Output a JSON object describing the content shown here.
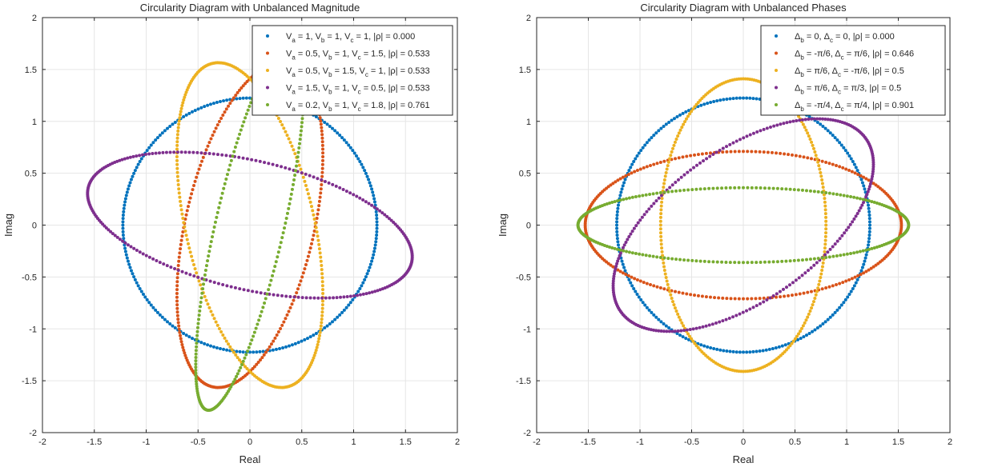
{
  "chart_data": [
    {
      "type": "scatter",
      "title": "Circularity Diagram with Unbalanced Magnitude",
      "xlabel": "Real",
      "ylabel": "Imag",
      "xlim": [
        -2,
        2
      ],
      "ylim": [
        -2,
        2
      ],
      "xticks": [
        "-2",
        "-1.5",
        "-1",
        "-0.5",
        "0",
        "0.5",
        "1",
        "1.5",
        "2"
      ],
      "yticks": [
        "-2",
        "-1.5",
        "-1",
        "-0.5",
        "0",
        "0.5",
        "1",
        "1.5",
        "2"
      ],
      "grid": true,
      "legend_placement": "top-right",
      "series": [
        {
          "legend": {
            "v1": "V",
            "s1": "a",
            "v2": " = 1, V",
            "s2": "b",
            "v3": " = 1, V",
            "s3": "c",
            "v4": " = 1, |ρ| = 0.000"
          },
          "color": "#0072BD",
          "ellipse": {
            "a": 1.2247,
            "b": 1.2247,
            "angle_deg": 0
          }
        },
        {
          "legend": {
            "v1": "V",
            "s1": "a",
            "v2": " = 0.5, V",
            "s2": "b",
            "v3": " = 1, V",
            "s3": "c",
            "v4": " = 1.5, |ρ| = 0.533"
          },
          "color": "#D95319",
          "ellipse": {
            "a": 1.6,
            "b": 0.62,
            "angle_deg": 77
          }
        },
        {
          "legend": {
            "v1": "V",
            "s1": "a",
            "v2": " = 0.5, V",
            "s2": "b",
            "v3": " = 1.5, V",
            "s3": "c",
            "v4": " = 1, |ρ| = 0.533"
          },
          "color": "#EDB120",
          "ellipse": {
            "a": 1.6,
            "b": 0.62,
            "angle_deg": 103
          }
        },
        {
          "legend": {
            "v1": "V",
            "s1": "a",
            "v2": " = 1.5, V",
            "s2": "b",
            "v3": " = 1, V",
            "s3": "c",
            "v4": " = 0.5, |ρ| = 0.533"
          },
          "color": "#7E2F8E",
          "ellipse": {
            "a": 1.6,
            "b": 0.62,
            "angle_deg": -13
          }
        },
        {
          "legend": {
            "v1": "V",
            "s1": "a",
            "v2": " = 0.2, V",
            "s2": "b",
            "v3": " = 1, V",
            "s3": "c",
            "v4": " = 1.8, |ρ| = 0.761"
          },
          "color": "#77AC30",
          "ellipse": {
            "a": 1.83,
            "b": 0.33,
            "angle_deg": 77
          }
        }
      ]
    },
    {
      "type": "scatter",
      "title": "Circularity Diagram with Unbalanced Phases",
      "xlabel": "Real",
      "ylabel": "Imag",
      "xlim": [
        -2,
        2
      ],
      "ylim": [
        -2,
        2
      ],
      "xticks": [
        "-2",
        "-1.5",
        "-1",
        "-0.5",
        "0",
        "0.5",
        "1",
        "1.5",
        "2"
      ],
      "yticks": [
        "-2",
        "-1.5",
        "-1",
        "-0.5",
        "0",
        "0.5",
        "1",
        "1.5",
        "2"
      ],
      "grid": true,
      "legend_placement": "top-right",
      "series": [
        {
          "legend": {
            "v1": "Δ",
            "s1": "b",
            "v2": " = 0, Δ",
            "s2": "c",
            "v3": " = 0, |ρ| = 0.000"
          },
          "color": "#0072BD",
          "ellipse": {
            "a": 1.2247,
            "b": 1.2247,
            "angle_deg": 0
          }
        },
        {
          "legend": {
            "v1": "Δ",
            "s1": "b",
            "v2": " = -π/6, Δ",
            "s2": "c",
            "v3": " = π/6, |ρ| = 0.646"
          },
          "color": "#D95319",
          "ellipse": {
            "a": 1.53,
            "b": 0.71,
            "angle_deg": 0
          }
        },
        {
          "legend": {
            "v1": "Δ",
            "s1": "b",
            "v2": " = π/6, Δ",
            "s2": "c",
            "v3": " = -π/6, |ρ| = 0.5"
          },
          "color": "#EDB120",
          "ellipse": {
            "a": 1.41,
            "b": 0.8,
            "angle_deg": 90
          }
        },
        {
          "legend": {
            "v1": "Δ",
            "s1": "b",
            "v2": " = π/6, Δ",
            "s2": "c",
            "v3": " = π/3, |ρ| = 0.5"
          },
          "color": "#7E2F8E",
          "ellipse": {
            "a": 1.45,
            "b": 0.73,
            "angle_deg": 35
          }
        },
        {
          "legend": {
            "v1": "Δ",
            "s1": "b",
            "v2": " = -π/4, Δ",
            "s2": "c",
            "v3": " = π/4, |ρ| = 0.901"
          },
          "color": "#77AC30",
          "ellipse": {
            "a": 1.6,
            "b": 0.36,
            "angle_deg": 0
          }
        }
      ]
    }
  ]
}
